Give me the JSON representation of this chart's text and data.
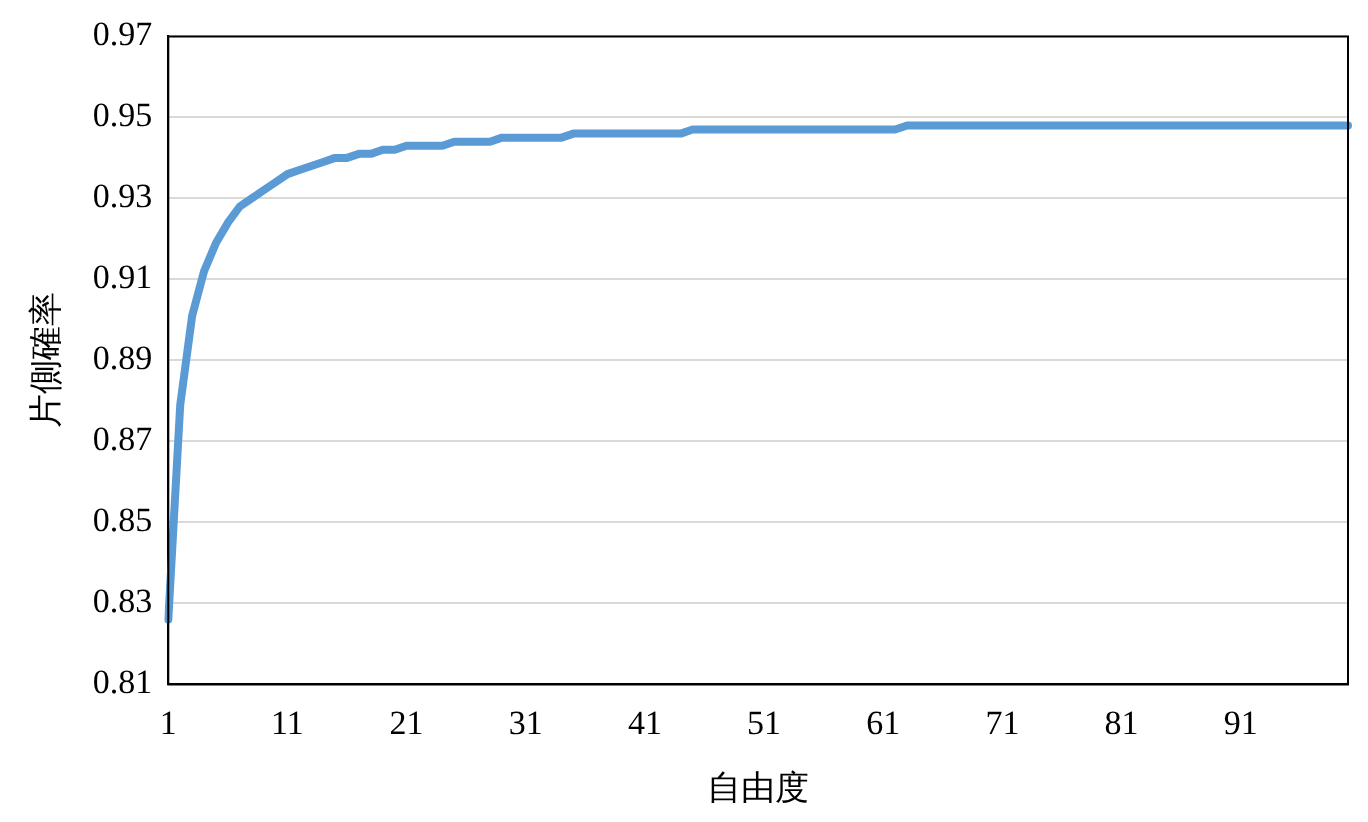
{
  "chart_data": {
    "type": "line",
    "xlabel": "自由度",
    "ylabel": "片側確率",
    "categories": [
      "1",
      null,
      null,
      null,
      null,
      null,
      null,
      null,
      null,
      null,
      "11",
      null,
      null,
      null,
      null,
      null,
      null,
      null,
      null,
      null,
      "21",
      null,
      null,
      null,
      null,
      null,
      null,
      null,
      null,
      null,
      "31",
      null,
      null,
      null,
      null,
      null,
      null,
      null,
      null,
      null,
      "41",
      null,
      null,
      null,
      null,
      null,
      null,
      null,
      null,
      null,
      "51",
      null,
      null,
      null,
      null,
      null,
      null,
      null,
      null,
      null,
      "61",
      null,
      null,
      null,
      null,
      null,
      null,
      null,
      null,
      null,
      "71",
      null,
      null,
      null,
      null,
      null,
      null,
      null,
      null,
      null,
      "81",
      null,
      null,
      null,
      null,
      null,
      null,
      null,
      null,
      null,
      "91",
      null,
      null,
      null,
      null,
      null,
      null,
      null,
      null,
      null
    ],
    "values": [
      0.826,
      0.879,
      0.901,
      0.912,
      0.919,
      0.924,
      0.928,
      0.93,
      0.932,
      0.934,
      0.936,
      0.937,
      0.938,
      0.939,
      0.94,
      0.94,
      0.941,
      0.941,
      0.942,
      0.942,
      0.943,
      0.943,
      0.943,
      0.943,
      0.944,
      0.944,
      0.944,
      0.944,
      0.945,
      0.945,
      0.945,
      0.945,
      0.945,
      0.945,
      0.946,
      0.946,
      0.946,
      0.946,
      0.946,
      0.946,
      0.946,
      0.946,
      0.946,
      0.946,
      0.947,
      0.947,
      0.947,
      0.947,
      0.947,
      0.947,
      0.947,
      0.947,
      0.947,
      0.947,
      0.947,
      0.947,
      0.947,
      0.947,
      0.947,
      0.947,
      0.947,
      0.947,
      0.948,
      0.948,
      0.948,
      0.948,
      0.948,
      0.948,
      0.948,
      0.948,
      0.948,
      0.948,
      0.948,
      0.948,
      0.948,
      0.948,
      0.948,
      0.948,
      0.948,
      0.948,
      0.948,
      0.948,
      0.948,
      0.948,
      0.948,
      0.948,
      0.948,
      0.948,
      0.948,
      0.948,
      0.948,
      0.948,
      0.948,
      0.948,
      0.948,
      0.948,
      0.948,
      0.948,
      0.948,
      0.948
    ],
    "color": "#5b9bd5",
    "ylim": [
      0.81,
      0.97
    ],
    "yticks": [
      0.81,
      0.83,
      0.85,
      0.87,
      0.89,
      0.91,
      0.93,
      0.95,
      0.97
    ],
    "grid": "y",
    "legend": false
  }
}
